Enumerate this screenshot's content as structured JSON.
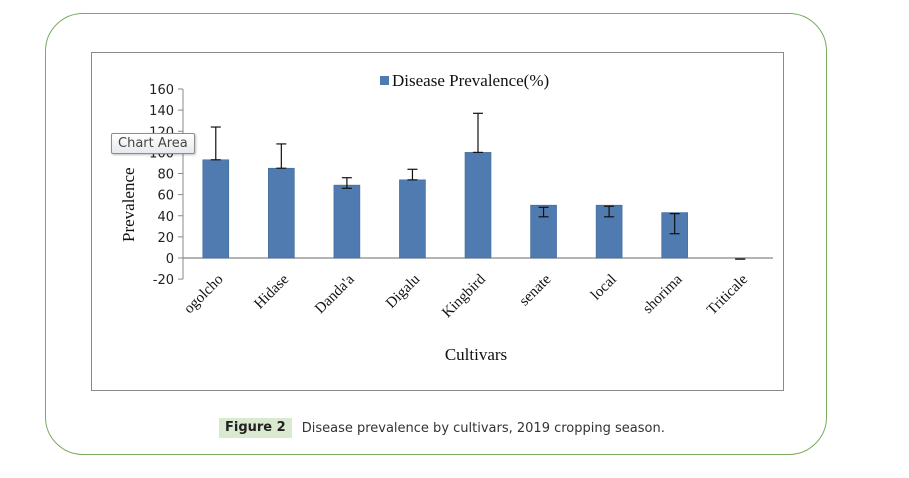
{
  "figure": {
    "label": "Figure 2",
    "caption": "Disease prevalence by cultivars, 2019 cropping season."
  },
  "tooltip": {
    "text": "Chart Area"
  },
  "chart_data": {
    "type": "bar",
    "title": "",
    "xlabel": "Cultivars",
    "ylabel": "Prevalence",
    "ylim": [
      -20,
      160
    ],
    "yticks": [
      -20,
      0,
      20,
      40,
      60,
      80,
      100,
      120,
      140,
      160
    ],
    "grid": false,
    "legend": {
      "position": "top-center",
      "entries": [
        "Disease Prevalence(%)"
      ]
    },
    "bar_color": "#4f7bb0",
    "categories": [
      "ogolcho",
      "Hidase",
      "Danda'a",
      "Digalu",
      "Kingbird",
      "senate",
      "local",
      "shorima",
      "Triticale"
    ],
    "series": [
      {
        "name": "Disease Prevalence(%)",
        "values": [
          93,
          85,
          69,
          74,
          100,
          50,
          50,
          43,
          0
        ],
        "error_low": [
          93,
          85,
          66,
          74,
          100,
          39,
          39,
          23,
          -1
        ],
        "error_high": [
          124,
          108,
          76,
          84,
          137,
          48,
          49,
          42,
          -1
        ]
      }
    ]
  }
}
